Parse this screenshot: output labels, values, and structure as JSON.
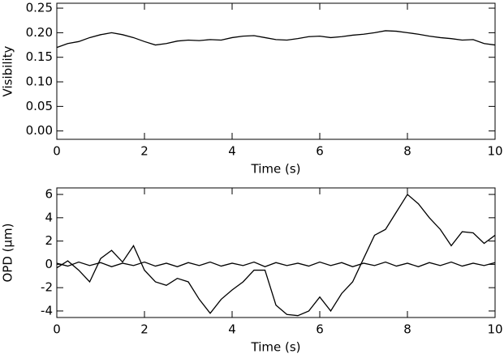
{
  "chart_data": [
    {
      "type": "line",
      "xlabel": "Time (s)",
      "ylabel": "Visibility",
      "x": [
        0,
        0.25,
        0.5,
        0.75,
        1,
        1.25,
        1.5,
        1.75,
        2,
        2.25,
        2.5,
        2.75,
        3,
        3.25,
        3.5,
        3.75,
        4,
        4.25,
        4.5,
        4.75,
        5,
        5.25,
        5.5,
        5.75,
        6,
        6.25,
        6.5,
        6.75,
        7,
        7.25,
        7.5,
        7.75,
        8,
        8.25,
        8.5,
        8.75,
        9,
        9.25,
        9.5,
        9.75,
        10
      ],
      "series": [
        {
          "color": "#000000",
          "values": [
            0.17,
            0.178,
            0.182,
            0.19,
            0.196,
            0.2,
            0.196,
            0.19,
            0.182,
            0.175,
            0.178,
            0.183,
            0.185,
            0.184,
            0.186,
            0.185,
            0.19,
            0.193,
            0.194,
            0.19,
            0.186,
            0.185,
            0.188,
            0.192,
            0.193,
            0.19,
            0.192,
            0.195,
            0.197,
            0.2,
            0.204,
            0.203,
            0.2,
            0.197,
            0.193,
            0.19,
            0.188,
            0.185,
            0.186,
            0.178,
            0.175
          ]
        }
      ],
      "xlim": [
        0,
        10
      ],
      "xticks": [
        0,
        2,
        4,
        6,
        8,
        10
      ],
      "ylim": [
        -0.017,
        0.26
      ],
      "yticks": [
        {
          "value": 0,
          "label": "0.00"
        },
        {
          "value": 0.05,
          "label": "0.05"
        },
        {
          "value": 0.1,
          "label": "0.10"
        },
        {
          "value": 0.15,
          "label": "0.15"
        },
        {
          "value": 0.2,
          "label": "0.20"
        },
        {
          "value": 0.25,
          "label": "0.25"
        }
      ]
    },
    {
      "type": "line",
      "xlabel": "Time (s)",
      "ylabel": "OPD (μm)",
      "x": [
        0,
        0.25,
        0.5,
        0.75,
        1,
        1.25,
        1.5,
        1.75,
        2,
        2.25,
        2.5,
        2.75,
        3,
        3.25,
        3.5,
        3.75,
        4,
        4.25,
        4.5,
        4.75,
        5,
        5.25,
        5.5,
        5.75,
        6,
        6.25,
        6.5,
        6.75,
        7,
        7.25,
        7.5,
        7.75,
        8,
        8.25,
        8.5,
        8.75,
        9,
        9.25,
        9.5,
        9.75,
        10
      ],
      "series": [
        {
          "color": "#000000",
          "values": [
            -0.3,
            0.3,
            -0.5,
            -1.5,
            0.5,
            1.2,
            0.2,
            1.6,
            -0.5,
            -1.5,
            -1.8,
            -1.2,
            -1.5,
            -3.0,
            -4.2,
            -3.0,
            -2.2,
            -1.5,
            -0.5,
            -0.5,
            -3.5,
            -4.3,
            -4.4,
            -4.0,
            -2.8,
            -4.0,
            -2.5,
            -1.5,
            0.5,
            2.5,
            3.0,
            4.5,
            6.0,
            5.2,
            4.0,
            3.0,
            1.6,
            2.8,
            2.7,
            1.8,
            2.5
          ]
        },
        {
          "color": "#000000",
          "values": [
            0.1,
            -0.15,
            0.2,
            -0.1,
            0.15,
            -0.2,
            0.1,
            -0.1,
            0.2,
            -0.15,
            0.1,
            -0.2,
            0.15,
            -0.1,
            0.2,
            -0.15,
            0.1,
            -0.1,
            0.2,
            -0.2,
            0.15,
            -0.1,
            0.1,
            -0.15,
            0.2,
            -0.1,
            0.15,
            -0.2,
            0.1,
            -0.1,
            0.2,
            -0.15,
            0.1,
            -0.2,
            0.15,
            -0.1,
            0.2,
            -0.15,
            0.1,
            -0.1,
            0.15
          ]
        }
      ],
      "xlim": [
        0,
        10
      ],
      "xticks": [
        0,
        2,
        4,
        6,
        8,
        10
      ],
      "ylim": [
        -4.56,
        6.56
      ],
      "yticks": [
        -4,
        -2,
        0,
        2,
        4,
        6
      ]
    }
  ]
}
